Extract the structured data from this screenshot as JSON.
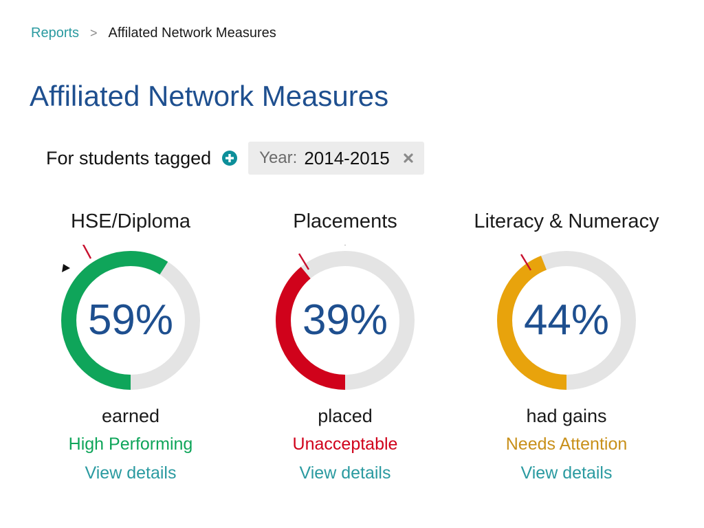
{
  "breadcrumb": {
    "root": "Reports",
    "separator": ">",
    "current": "Affilated Network Measures"
  },
  "page_title": "Affiliated Network Measures",
  "filter": {
    "label": "For students tagged",
    "add_icon": "plus-circle-icon",
    "chip": {
      "key": "Year:",
      "value": "2014-2015",
      "remove_icon": "close-icon"
    }
  },
  "track_color": "#e4e4e4",
  "target_marker_color": "#c8102e",
  "benchmark_marker_color": "#111111",
  "metrics": [
    {
      "title": "HSE/Diploma",
      "value": "59%",
      "percent": 59,
      "caption": "earned",
      "status": "High Performing",
      "status_color": "#0fa55a",
      "arc_color": "#0fa55a",
      "link": "View details"
    },
    {
      "title": "Placements",
      "value": "39%",
      "percent": 39,
      "caption": "placed",
      "status": "Unacceptable",
      "status_color": "#d0021b",
      "arc_color": "#d0021b",
      "link": "View details"
    },
    {
      "title": "Literacy & Numeracy",
      "value": "44%",
      "percent": 44,
      "caption": "had gains",
      "status": "Needs Attention",
      "status_color": "#c8901a",
      "arc_color": "#e8a30c",
      "link": "View details"
    }
  ]
}
